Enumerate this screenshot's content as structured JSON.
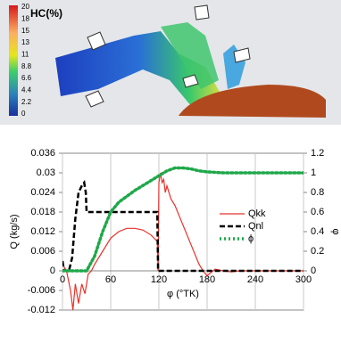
{
  "image": {
    "legend_title": "HC(%)",
    "legend_labels": [
      "20",
      "18",
      "15",
      "13",
      "11",
      "8.8",
      "6.6",
      "4.4",
      "2.2",
      "0"
    ]
  },
  "chart_data": {
    "type": "line",
    "xlabel": "φ (°TK)",
    "ylabel": "Q (kg/s)",
    "y2label": "φ",
    "xlim": [
      0,
      300
    ],
    "xticks": [
      0,
      60,
      120,
      180,
      240,
      300
    ],
    "ylim": [
      -0.012,
      0.036
    ],
    "yticks": [
      -0.012,
      -0.006,
      0,
      0.006,
      0.012,
      0.018,
      0.024,
      0.03,
      0.036
    ],
    "y2lim": [
      -0.4,
      1.2
    ],
    "y2ticks": [
      0,
      0.2,
      0.4,
      0.6,
      0.8,
      1,
      1.2
    ],
    "grid": "x",
    "legend": "right",
    "series": [
      {
        "name": "Qkk",
        "color": "#e8312a",
        "style": "solid",
        "x": [
          0,
          5,
          10,
          13,
          16,
          20,
          24,
          28,
          32,
          36,
          40,
          50,
          60,
          70,
          80,
          90,
          100,
          110,
          118,
          119,
          120,
          122,
          124,
          126,
          128,
          130,
          135,
          140,
          150,
          160,
          170,
          175,
          180,
          185,
          190,
          200,
          210,
          220,
          240,
          300
        ],
        "values": [
          0.002,
          0,
          -0.006,
          -0.012,
          -0.004,
          -0.01,
          -0.004,
          -0.007,
          -0.001,
          0,
          0.002,
          0.006,
          0.01,
          0.012,
          0.013,
          0.013,
          0.0125,
          0.011,
          0.009,
          0,
          0.027,
          0.03,
          0.027,
          0.028,
          0.024,
          0.026,
          0.022,
          0.02,
          0.014,
          0.008,
          0.002,
          0,
          -0.0015,
          -0.0005,
          0.0005,
          0,
          -0.0003,
          0,
          0,
          0
        ]
      },
      {
        "name": "Qnl",
        "color": "#000000",
        "style": "dashed",
        "x": [
          0,
          2,
          4,
          8,
          12,
          16,
          20,
          24,
          27,
          29,
          30,
          118,
          119,
          300
        ],
        "values": [
          0.003,
          0,
          0,
          0,
          0.004,
          0.016,
          0.024,
          0.026,
          0.027,
          0.024,
          0.018,
          0.018,
          0,
          0
        ]
      },
      {
        "name": "ϕ",
        "color": "#1fa84a",
        "style": "dotted",
        "axis": "y2",
        "x": [
          0,
          30,
          40,
          50,
          60,
          70,
          80,
          90,
          100,
          110,
          120,
          130,
          140,
          150,
          160,
          170,
          180,
          200,
          240,
          300
        ],
        "values": [
          0,
          0,
          0.15,
          0.4,
          0.6,
          0.7,
          0.76,
          0.82,
          0.87,
          0.92,
          0.97,
          1.02,
          1.05,
          1.05,
          1.04,
          1.02,
          1.01,
          1,
          1,
          1
        ]
      }
    ]
  }
}
